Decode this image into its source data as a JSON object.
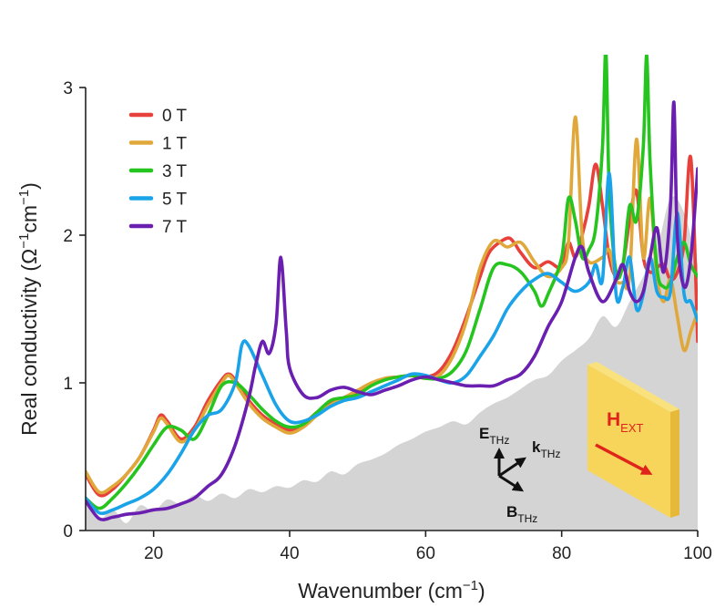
{
  "chart_data": {
    "type": "line",
    "xlabel": "Wavenumber (cm",
    "xlabel_sup": "−1",
    "xlabel_end": ")",
    "ylabel": "Real conductivity (Ω",
    "ylabel_sup1": "−1",
    "ylabel_mid": "cm",
    "ylabel_sup2": "−1",
    "ylabel_end": ")",
    "xlim": [
      10,
      100
    ],
    "ylim": [
      0,
      3
    ],
    "xticks": [
      "20",
      "40",
      "60",
      "80",
      "100"
    ],
    "yticks": [
      "0",
      "1",
      "2",
      "3"
    ],
    "legend_position": "top-left",
    "background_area": {
      "color": "#d4d4d4",
      "x": [
        10,
        12,
        14,
        16,
        18,
        20,
        22,
        24,
        26,
        28,
        30,
        32,
        34,
        36,
        38,
        40,
        42,
        44,
        46,
        48,
        50,
        52,
        54,
        56,
        58,
        60,
        62,
        64,
        66,
        68,
        70,
        72,
        74,
        76,
        78,
        80,
        82,
        84,
        86,
        88,
        90,
        92,
        94,
        96,
        98,
        100
      ],
      "y": [
        0.22,
        0.08,
        0.14,
        0.05,
        0.17,
        0.13,
        0.21,
        0.18,
        0.24,
        0.2,
        0.25,
        0.22,
        0.28,
        0.26,
        0.3,
        0.29,
        0.34,
        0.33,
        0.4,
        0.38,
        0.45,
        0.48,
        0.52,
        0.58,
        0.62,
        0.67,
        0.7,
        0.74,
        0.72,
        0.8,
        0.86,
        0.9,
        0.96,
        1.02,
        1.05,
        1.15,
        1.22,
        1.3,
        1.45,
        1.38,
        1.55,
        1.72,
        1.9,
        2.25,
        2.15,
        1.8
      ]
    },
    "series": [
      {
        "name": "0 T",
        "color": "#e8403a",
        "x": [
          10,
          12,
          14,
          16,
          18,
          20,
          21,
          22,
          24,
          26,
          28,
          30,
          31,
          32,
          34,
          36,
          38,
          40,
          42,
          44,
          46,
          48,
          50,
          52,
          54,
          56,
          58,
          60,
          62,
          64,
          66,
          68,
          69,
          70,
          72,
          73,
          74,
          76,
          78,
          80,
          81,
          82,
          83,
          84,
          85,
          86,
          87,
          88,
          89,
          90,
          91,
          92,
          93,
          94,
          95,
          96,
          97,
          98,
          99,
          100
        ],
        "y": [
          0.38,
          0.24,
          0.28,
          0.38,
          0.5,
          0.68,
          0.78,
          0.74,
          0.62,
          0.7,
          0.88,
          1.02,
          1.06,
          1.02,
          0.88,
          0.78,
          0.72,
          0.68,
          0.72,
          0.8,
          0.86,
          0.9,
          0.94,
          0.99,
          1.03,
          1.04,
          1.05,
          1.04,
          1.08,
          1.22,
          1.45,
          1.72,
          1.85,
          1.92,
          1.98,
          1.95,
          1.88,
          1.78,
          1.82,
          1.78,
          1.95,
          1.85,
          2.0,
          2.2,
          2.48,
          2.2,
          1.85,
          1.72,
          1.8,
          2.1,
          2.3,
          1.85,
          1.75,
          1.78,
          1.8,
          1.7,
          1.75,
          1.95,
          2.52,
          1.28
        ]
      },
      {
        "name": "1 T",
        "color": "#e0a83a",
        "x": [
          10,
          12,
          14,
          16,
          18,
          20,
          21,
          22,
          24,
          26,
          28,
          30,
          31,
          32,
          34,
          36,
          38,
          40,
          42,
          44,
          46,
          48,
          50,
          52,
          54,
          56,
          58,
          60,
          62,
          64,
          66,
          68,
          70,
          72,
          74,
          76,
          78,
          80,
          81,
          82,
          83,
          84,
          86,
          87,
          88,
          89,
          90,
          91,
          92,
          93,
          94,
          95,
          96,
          97,
          98,
          99,
          100
        ],
        "y": [
          0.4,
          0.26,
          0.3,
          0.38,
          0.5,
          0.67,
          0.76,
          0.72,
          0.6,
          0.68,
          0.85,
          1.0,
          1.05,
          1.0,
          0.86,
          0.76,
          0.7,
          0.66,
          0.7,
          0.78,
          0.85,
          0.9,
          0.95,
          1.0,
          1.03,
          1.04,
          1.05,
          1.03,
          1.05,
          1.18,
          1.42,
          1.78,
          1.96,
          1.92,
          1.95,
          1.82,
          1.72,
          1.78,
          1.95,
          2.8,
          2.0,
          1.82,
          1.85,
          1.9,
          1.7,
          1.68,
          1.72,
          2.65,
          1.85,
          2.25,
          1.72,
          1.55,
          1.7,
          1.45,
          1.22,
          1.35,
          1.48
        ]
      },
      {
        "name": "3 T",
        "color": "#26c41e",
        "x": [
          10,
          12,
          14,
          16,
          18,
          20,
          22,
          24,
          26,
          28,
          30,
          32,
          34,
          36,
          38,
          40,
          42,
          44,
          46,
          48,
          50,
          52,
          54,
          56,
          58,
          60,
          62,
          64,
          66,
          68,
          70,
          72,
          74,
          76,
          77,
          78,
          80,
          81,
          82,
          83,
          84,
          85,
          86,
          86.5,
          87,
          88,
          89,
          90,
          91,
          92,
          92.5,
          93,
          94,
          95,
          96,
          97,
          98,
          99,
          100
        ],
        "y": [
          0.22,
          0.15,
          0.22,
          0.32,
          0.44,
          0.58,
          0.7,
          0.68,
          0.62,
          0.78,
          0.98,
          1.0,
          0.92,
          0.82,
          0.74,
          0.7,
          0.72,
          0.8,
          0.88,
          0.9,
          0.92,
          0.98,
          1.02,
          1.04,
          1.05,
          1.03,
          1.03,
          1.08,
          1.22,
          1.5,
          1.78,
          1.8,
          1.75,
          1.62,
          1.52,
          1.6,
          1.85,
          2.25,
          2.1,
          1.85,
          1.9,
          2.05,
          2.6,
          3.25,
          2.3,
          1.75,
          1.8,
          2.2,
          2.1,
          2.6,
          3.22,
          2.5,
          1.78,
          1.65,
          1.68,
          1.85,
          1.95,
          1.8,
          1.72
        ]
      },
      {
        "name": "5 T",
        "color": "#1aa3e8",
        "x": [
          10,
          12,
          14,
          16,
          18,
          20,
          22,
          24,
          26,
          28,
          30,
          32,
          33,
          34,
          36,
          38,
          40,
          42,
          44,
          46,
          48,
          50,
          52,
          54,
          56,
          58,
          60,
          62,
          64,
          66,
          68,
          70,
          72,
          74,
          76,
          78,
          80,
          82,
          84,
          85,
          86,
          87,
          88,
          89,
          90,
          91,
          92,
          93,
          94,
          95,
          96,
          97,
          98,
          99,
          100
        ],
        "y": [
          0.22,
          0.12,
          0.14,
          0.18,
          0.22,
          0.28,
          0.38,
          0.52,
          0.68,
          0.78,
          0.82,
          1.0,
          1.26,
          1.25,
          1.05,
          0.85,
          0.74,
          0.74,
          0.78,
          0.84,
          0.88,
          0.9,
          0.94,
          0.98,
          1.02,
          1.06,
          1.05,
          1.02,
          1.0,
          1.05,
          1.18,
          1.32,
          1.5,
          1.62,
          1.7,
          1.74,
          1.68,
          1.62,
          1.68,
          1.8,
          1.7,
          2.42,
          1.6,
          1.65,
          1.85,
          1.5,
          1.6,
          1.85,
          1.62,
          1.58,
          1.62,
          2.15,
          1.6,
          1.55,
          1.42
        ]
      },
      {
        "name": "7 T",
        "color": "#6a1fb0",
        "x": [
          10,
          12,
          14,
          16,
          18,
          20,
          22,
          24,
          26,
          28,
          30,
          32,
          34,
          35,
          36,
          37,
          38,
          38.7,
          39.5,
          40,
          42,
          44,
          46,
          48,
          50,
          52,
          54,
          56,
          58,
          60,
          62,
          64,
          66,
          68,
          70,
          72,
          74,
          76,
          78,
          80,
          82,
          83,
          84,
          86,
          88,
          89,
          90,
          91,
          92,
          93,
          94,
          95,
          96,
          96.5,
          97,
          98,
          99,
          100
        ],
        "y": [
          0.2,
          0.08,
          0.09,
          0.11,
          0.12,
          0.14,
          0.15,
          0.18,
          0.22,
          0.3,
          0.38,
          0.58,
          0.9,
          1.12,
          1.28,
          1.2,
          1.4,
          1.85,
          1.35,
          1.1,
          0.92,
          0.9,
          0.95,
          0.97,
          0.94,
          0.92,
          0.95,
          0.98,
          1.02,
          1.04,
          1.02,
          1.0,
          0.98,
          0.98,
          0.98,
          1.02,
          1.06,
          1.18,
          1.38,
          1.55,
          1.85,
          1.92,
          1.75,
          1.55,
          1.7,
          1.8,
          1.62,
          1.55,
          1.62,
          1.85,
          2.05,
          1.75,
          2.2,
          2.9,
          2.0,
          1.65,
          1.85,
          2.45
        ]
      }
    ],
    "annotations": {
      "e_main": "E",
      "e_sub": "THz",
      "k_main": "k",
      "k_sub": "THz",
      "b_main": "B",
      "b_sub": "THz",
      "h_main": "H",
      "h_sub": "EXT"
    },
    "sample_block_color": "#f7d55a",
    "h_arrow_color": "#e0241b"
  }
}
